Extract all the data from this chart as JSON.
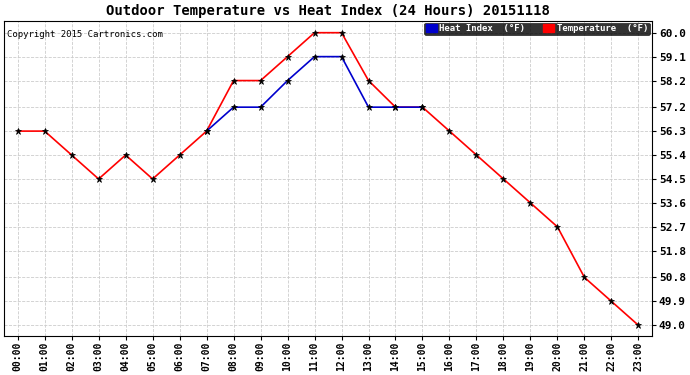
{
  "title": "Outdoor Temperature vs Heat Index (24 Hours) 20151118",
  "copyright": "Copyright 2015 Cartronics.com",
  "background_color": "#ffffff",
  "plot_bg_color": "#ffffff",
  "grid_color": "#cccccc",
  "x_labels": [
    "00:00",
    "01:00",
    "02:00",
    "03:00",
    "04:00",
    "05:00",
    "06:00",
    "07:00",
    "08:00",
    "09:00",
    "10:00",
    "11:00",
    "12:00",
    "13:00",
    "14:00",
    "15:00",
    "16:00",
    "17:00",
    "18:00",
    "19:00",
    "20:00",
    "21:00",
    "22:00",
    "23:00"
  ],
  "y_ticks": [
    49.0,
    49.9,
    50.8,
    51.8,
    52.7,
    53.6,
    54.5,
    55.4,
    56.3,
    57.2,
    58.2,
    59.1,
    60.0
  ],
  "temperature_color": "#ff0000",
  "heat_index_color": "#0000cd",
  "temperature_data": [
    56.3,
    56.3,
    55.4,
    54.5,
    55.4,
    54.5,
    55.4,
    56.3,
    58.2,
    58.2,
    59.1,
    60.0,
    60.0,
    58.2,
    57.2,
    57.2,
    56.3,
    55.4,
    54.5,
    53.6,
    52.7,
    50.8,
    49.9,
    49.0
  ],
  "heat_index_data_x": [
    7,
    8,
    9,
    10,
    11,
    12,
    13,
    14,
    15
  ],
  "heat_index_data_y": [
    56.3,
    57.2,
    57.2,
    58.2,
    59.1,
    59.1,
    57.2,
    57.2,
    57.2
  ],
  "ylim_min": 48.6,
  "ylim_max": 60.45,
  "legend_hi_label": "Heat Index  (°F)",
  "legend_temp_label": "Temperature  (°F)"
}
